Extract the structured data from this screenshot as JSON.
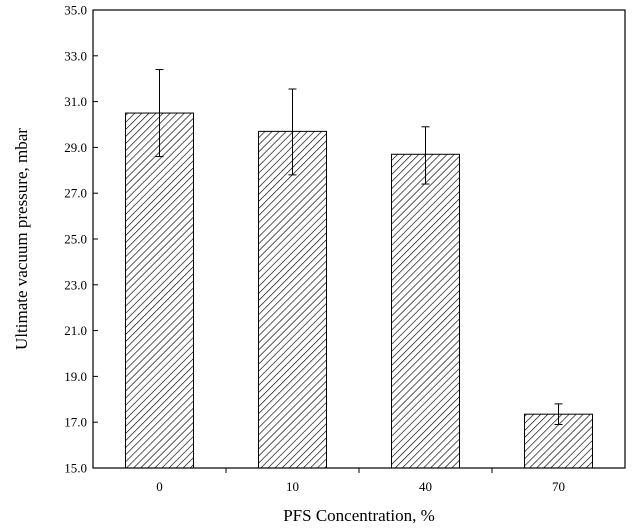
{
  "chart_data": {
    "type": "bar",
    "title": "",
    "xlabel": "PFS Concentration, %",
    "ylabel": "Ultimate vacuum pressure, mbar",
    "categories": [
      "0",
      "10",
      "40",
      "70"
    ],
    "values": [
      30.5,
      29.7,
      28.7,
      17.35
    ],
    "error_low": [
      28.6,
      27.8,
      27.4,
      16.9
    ],
    "error_high": [
      32.4,
      31.55,
      29.9,
      17.8
    ],
    "ylim": [
      15.0,
      35.0
    ],
    "y_ticks": [
      "15.0",
      "17.0",
      "19.0",
      "21.0",
      "23.0",
      "25.0",
      "27.0",
      "29.0",
      "31.0",
      "33.0",
      "35.0"
    ],
    "bar_fill": "diagonal-hatch",
    "bar_color": "#000000",
    "grid": false,
    "legend": "none"
  }
}
